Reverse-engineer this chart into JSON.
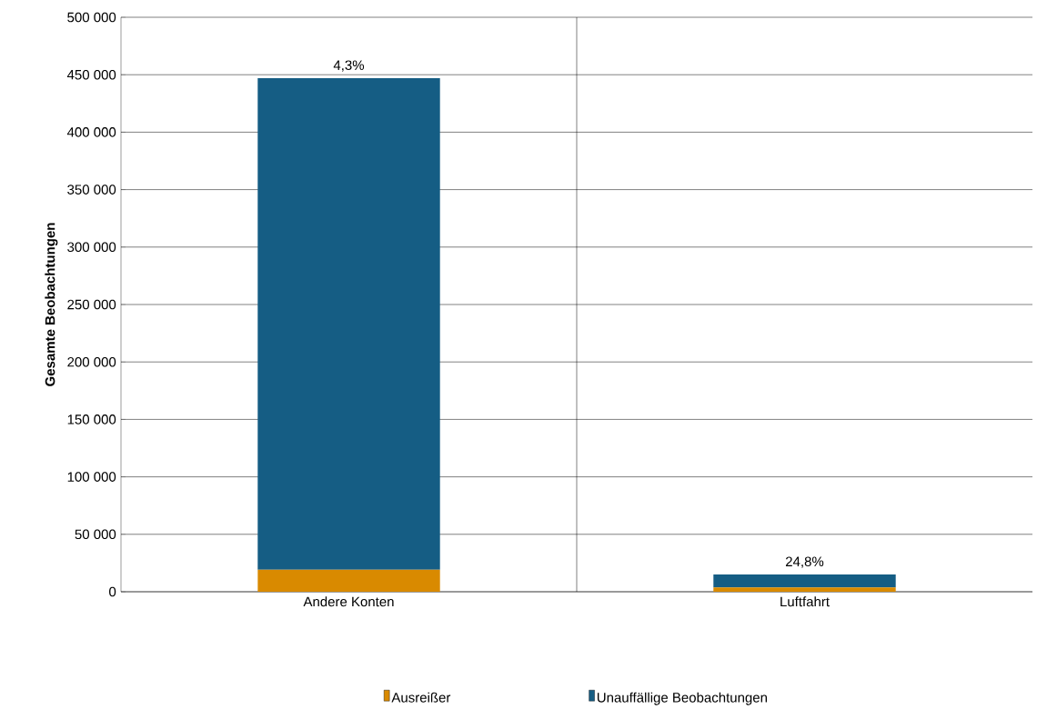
{
  "chart_data": {
    "type": "bar",
    "stacked": true,
    "ylabel": "Gesamte Beobachtungen",
    "categories": [
      "Andere Konten",
      "Luftfahrt"
    ],
    "series": [
      {
        "name": "Ausreißer",
        "color": "#d98a00",
        "values": [
          19200,
          3700
        ]
      },
      {
        "name": "Unauffällige Beobachtungen",
        "color": "#155d84",
        "values": [
          427800,
          11300
        ]
      }
    ],
    "ylim": [
      0,
      500000
    ],
    "yticks": [
      {
        "value": 0,
        "label": "0"
      },
      {
        "value": 50000,
        "label": "50 000"
      },
      {
        "value": 100000,
        "label": "100 000"
      },
      {
        "value": 150000,
        "label": "150 000"
      },
      {
        "value": 200000,
        "label": "200 000"
      },
      {
        "value": 250000,
        "label": "250 000"
      },
      {
        "value": 300000,
        "label": "300 000"
      },
      {
        "value": 350000,
        "label": "350 000"
      },
      {
        "value": 400000,
        "label": "400 000"
      },
      {
        "value": 450000,
        "label": "450 000"
      },
      {
        "value": 500000,
        "label": "500 000"
      }
    ],
    "annotations": [
      {
        "text": "4,3%",
        "x": "Andere Konten",
        "y": 447000
      },
      {
        "text": "24,8%",
        "x": "Luftfahrt",
        "y": 15000
      }
    ],
    "grid": true,
    "legend": "bottom"
  }
}
